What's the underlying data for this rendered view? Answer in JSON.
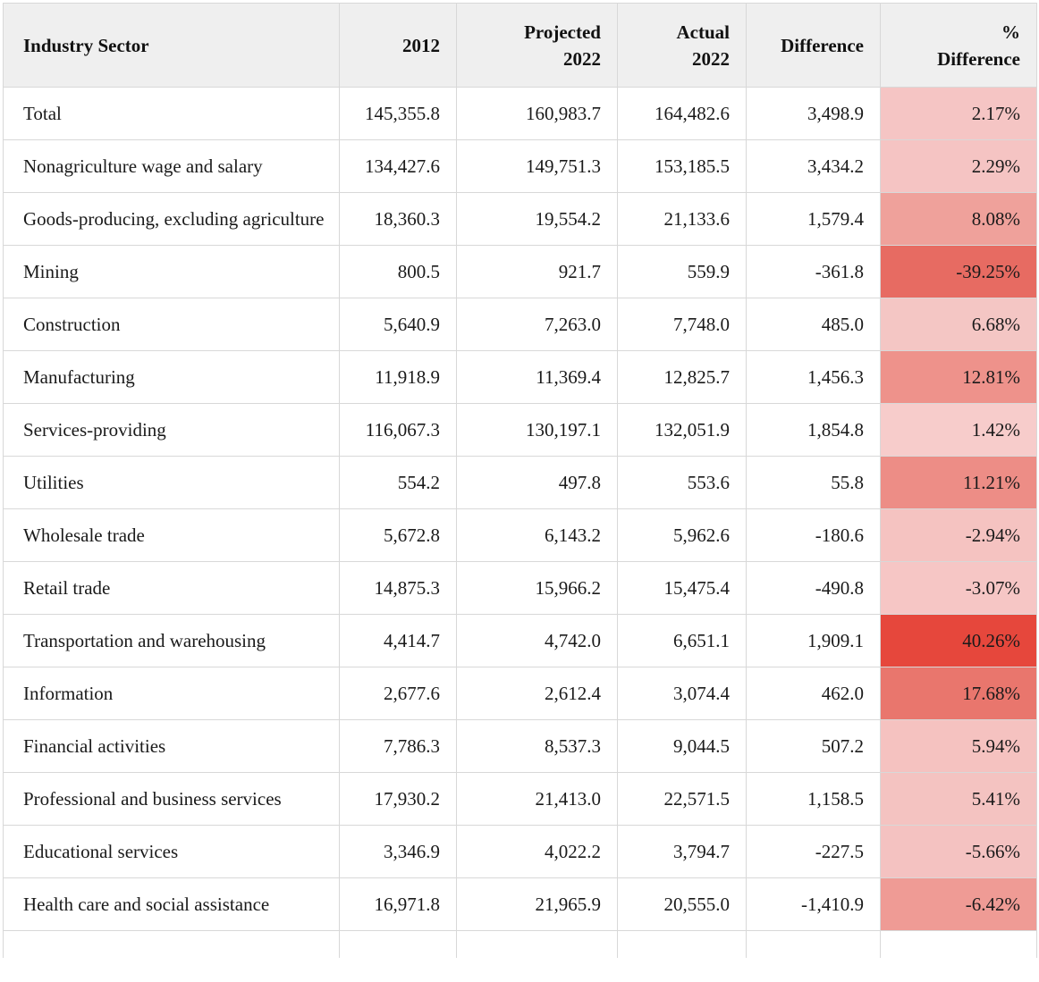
{
  "chart_data": {
    "type": "table",
    "columns": [
      {
        "label": "Industry Sector"
      },
      {
        "label": "2012"
      },
      {
        "label": "Projected\n2022"
      },
      {
        "label": "Actual\n2022"
      },
      {
        "label": "Difference"
      },
      {
        "label": "%\nDifference"
      }
    ],
    "rows": [
      {
        "sector": "Total",
        "y2012": "145,355.8",
        "projected": "160,983.7",
        "actual": "164,482.6",
        "difference": "3,498.9",
        "pct": "2.17%",
        "pct_bg": "#f5c5c4"
      },
      {
        "sector": "Nonagriculture wage and salary",
        "y2012": "134,427.6",
        "projected": "149,751.3",
        "actual": "153,185.5",
        "difference": "3,434.2",
        "pct": "2.29%",
        "pct_bg": "#f5c4c3"
      },
      {
        "sector": "Goods-producing, excluding agriculture",
        "y2012": "18,360.3",
        "projected": "19,554.2",
        "actual": "21,133.6",
        "difference": "1,579.4",
        "pct": "8.08%",
        "pct_bg": "#efa19b"
      },
      {
        "sector": "Mining",
        "y2012": "800.5",
        "projected": "921.7",
        "actual": "559.9",
        "difference": "-361.8",
        "pct": "-39.25%",
        "pct_bg": "#e76b62"
      },
      {
        "sector": "Construction",
        "y2012": "5,640.9",
        "projected": "7,263.0",
        "actual": "7,748.0",
        "difference": "485.0",
        "pct": "6.68%",
        "pct_bg": "#f4c6c4"
      },
      {
        "sector": "Manufacturing",
        "y2012": "11,918.9",
        "projected": "11,369.4",
        "actual": "12,825.7",
        "difference": "1,456.3",
        "pct": "12.81%",
        "pct_bg": "#ee928b"
      },
      {
        "sector": "Services-providing",
        "y2012": "116,067.3",
        "projected": "130,197.1",
        "actual": "132,051.9",
        "difference": "1,854.8",
        "pct": "1.42%",
        "pct_bg": "#f7cccb"
      },
      {
        "sector": "Utilities",
        "y2012": "554.2",
        "projected": "497.8",
        "actual": "553.6",
        "difference": "55.8",
        "pct": "11.21%",
        "pct_bg": "#ed8d86"
      },
      {
        "sector": "Wholesale trade",
        "y2012": "5,672.8",
        "projected": "6,143.2",
        "actual": "5,962.6",
        "difference": "-180.6",
        "pct": "-2.94%",
        "pct_bg": "#f5c3c1"
      },
      {
        "sector": "Retail trade",
        "y2012": "14,875.3",
        "projected": "15,966.2",
        "actual": "15,475.4",
        "difference": "-490.8",
        "pct": "-3.07%",
        "pct_bg": "#f6c6c5"
      },
      {
        "sector": "Transportation and warehousing",
        "y2012": "4,414.7",
        "projected": "4,742.0",
        "actual": "6,651.1",
        "difference": "1,909.1",
        "pct": "40.26%",
        "pct_bg": "#e6473c"
      },
      {
        "sector": "Information",
        "y2012": "2,677.6",
        "projected": "2,612.4",
        "actual": "3,074.4",
        "difference": "462.0",
        "pct": "17.68%",
        "pct_bg": "#e9766d"
      },
      {
        "sector": "Financial activities",
        "y2012": "7,786.3",
        "projected": "8,537.3",
        "actual": "9,044.5",
        "difference": "507.2",
        "pct": "5.94%",
        "pct_bg": "#f5c2c0"
      },
      {
        "sector": "Professional and business services",
        "y2012": "17,930.2",
        "projected": "21,413.0",
        "actual": "22,571.5",
        "difference": "1,158.5",
        "pct": "5.41%",
        "pct_bg": "#f4c3c1"
      },
      {
        "sector": "Educational services",
        "y2012": "3,346.9",
        "projected": "4,022.2",
        "actual": "3,794.7",
        "difference": "-227.5",
        "pct": "-5.66%",
        "pct_bg": "#f4c2c1"
      },
      {
        "sector": "Health care and social assistance",
        "y2012": "16,971.8",
        "projected": "21,965.9",
        "actual": "20,555.0",
        "difference": "-1,410.9",
        "pct": "-6.42%",
        "pct_bg": "#ef9b95"
      }
    ],
    "layout": {
      "header_bg": "#efefef",
      "grid_color": "#d8d8d8",
      "heatmap_min_color": "#f7cccb",
      "heatmap_max_color": "#e6473c"
    }
  }
}
